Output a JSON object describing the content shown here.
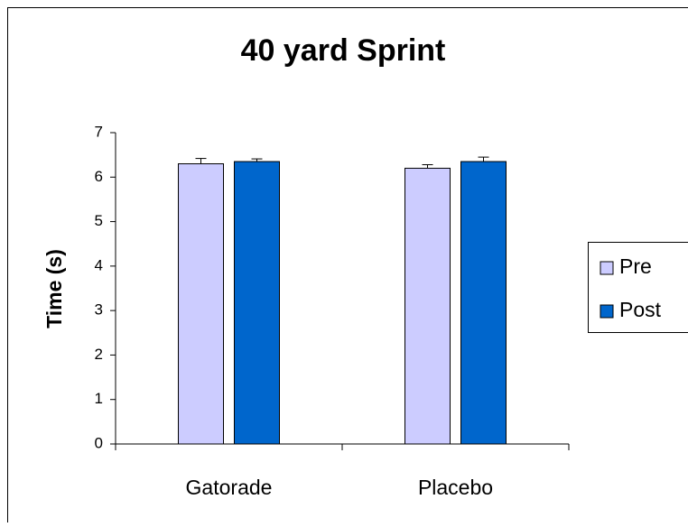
{
  "chart_data": {
    "type": "bar",
    "title": "40 yard Sprint",
    "y_label": "Time (s)",
    "categories": [
      "Gatorade",
      "Placebo"
    ],
    "series": [
      {
        "name": "Pre",
        "color": "#ccccff",
        "values": [
          6.3,
          6.2
        ],
        "errors": [
          0.12,
          0.08
        ]
      },
      {
        "name": "Post",
        "color": "#0066cc",
        "values": [
          6.35,
          6.35
        ],
        "errors": [
          0.06,
          0.1
        ]
      }
    ],
    "ylim": [
      0,
      7
    ],
    "yticks": [
      0,
      1,
      2,
      3,
      4,
      5,
      6,
      7
    ],
    "legend": "right"
  }
}
